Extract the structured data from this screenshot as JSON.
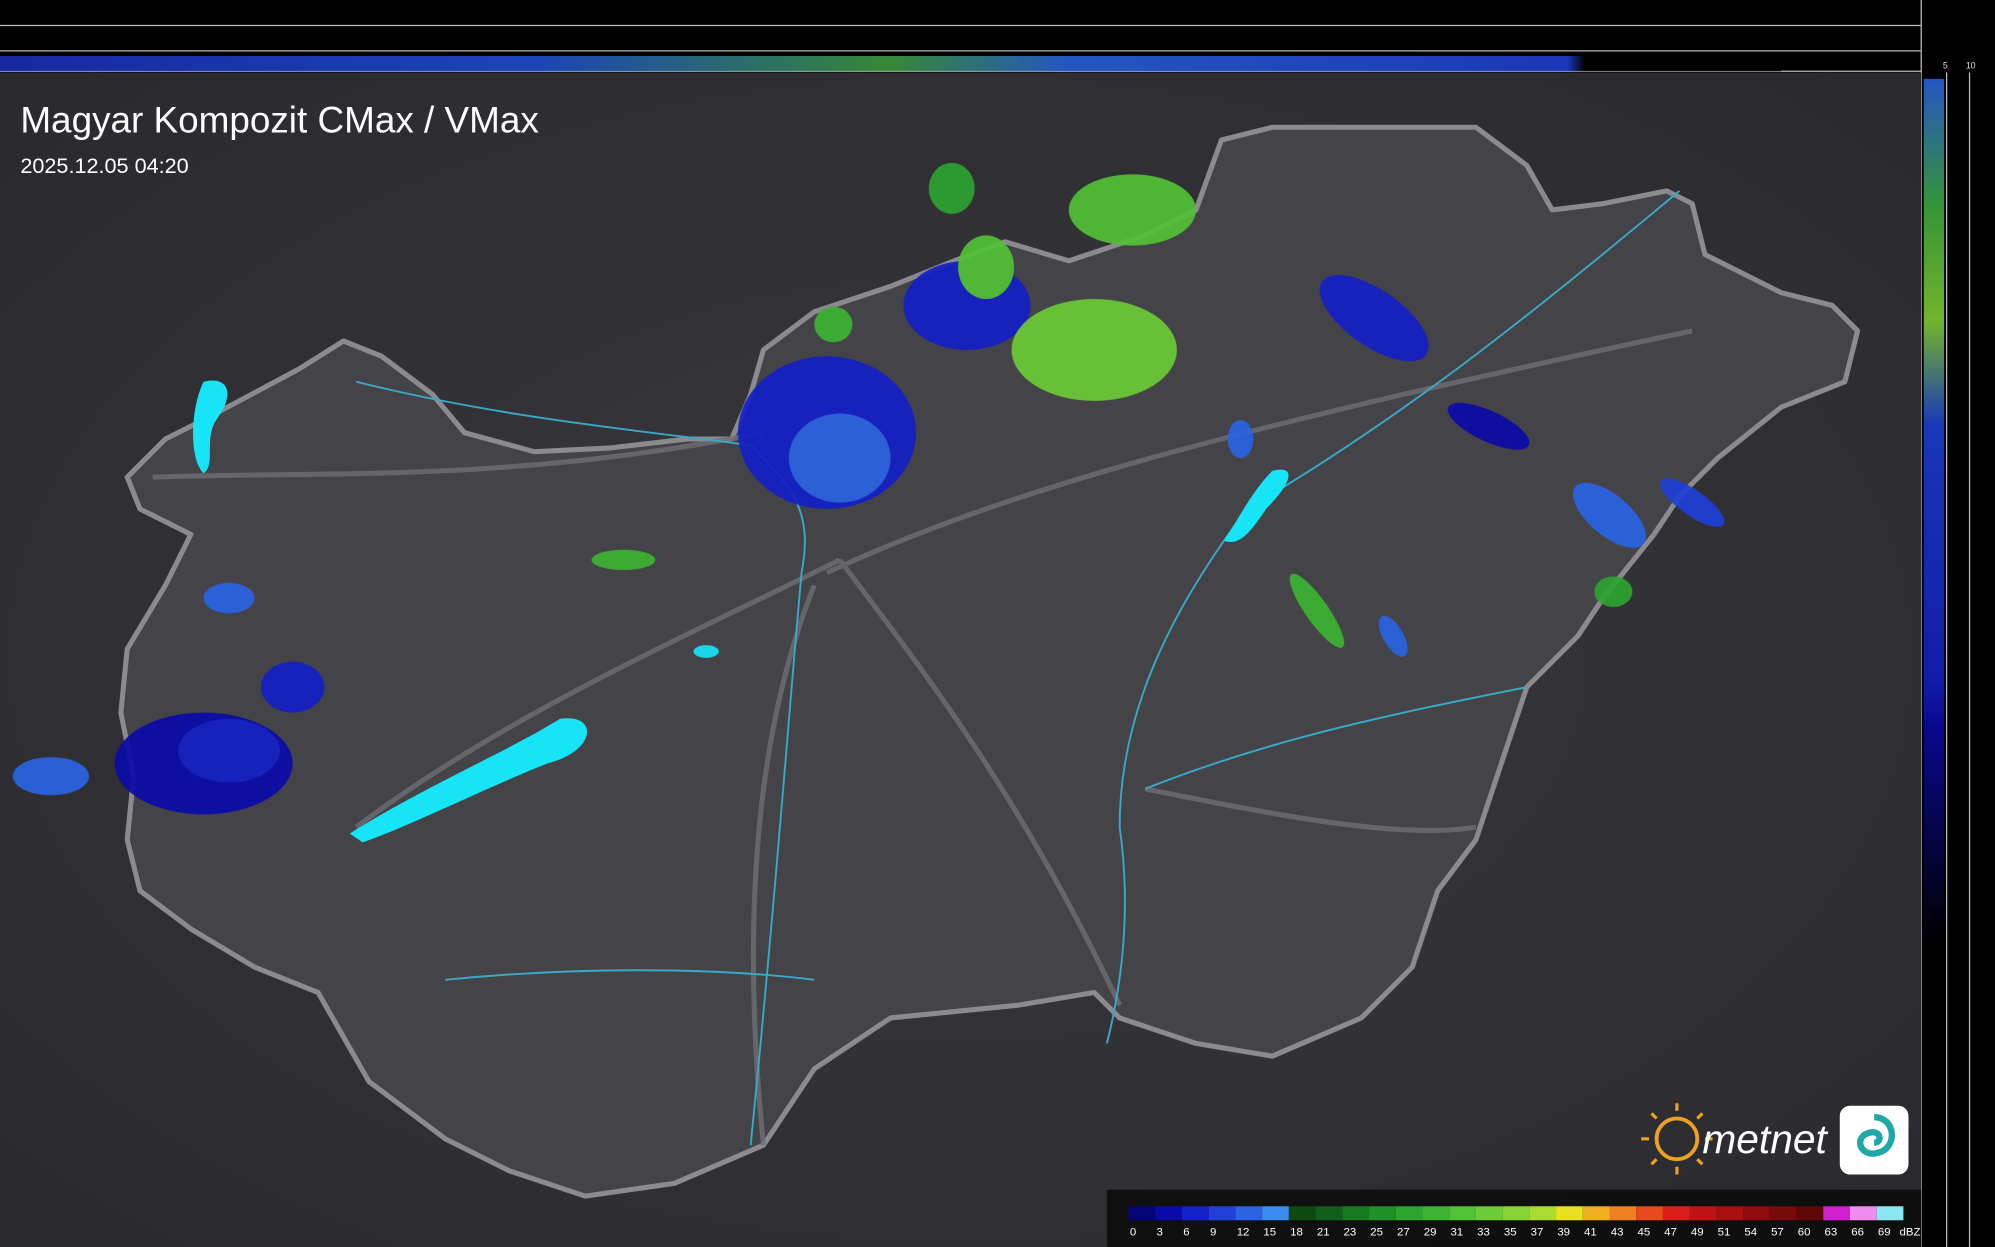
{
  "header": {
    "title": "Magyar Kompozit CMax / VMax",
    "timestamp": "2025.12.05 04:20"
  },
  "side_scale": {
    "top": [
      "10",
      "5"
    ],
    "right": [
      "5",
      "10"
    ]
  },
  "logo": {
    "text": "metnet"
  },
  "legend": {
    "unit": "dBZ",
    "steps": [
      {
        "value": 0,
        "color": "#05057a"
      },
      {
        "value": 3,
        "color": "#0a0aa8"
      },
      {
        "value": 6,
        "color": "#1420c8"
      },
      {
        "value": 9,
        "color": "#2040d8"
      },
      {
        "value": 12,
        "color": "#2a64e4"
      },
      {
        "value": 15,
        "color": "#3a8cf0"
      },
      {
        "value": 18,
        "color": "#0c4a12"
      },
      {
        "value": 21,
        "color": "#10601a"
      },
      {
        "value": 23,
        "color": "#187a20"
      },
      {
        "value": 25,
        "color": "#209028"
      },
      {
        "value": 27,
        "color": "#2ca430"
      },
      {
        "value": 29,
        "color": "#3cb432"
      },
      {
        "value": 31,
        "color": "#52c236"
      },
      {
        "value": 33,
        "color": "#6ccc36"
      },
      {
        "value": 35,
        "color": "#88d434"
      },
      {
        "value": 37,
        "color": "#a8dc30"
      },
      {
        "value": 39,
        "color": "#e8e020"
      },
      {
        "value": 41,
        "color": "#f0b020"
      },
      {
        "value": 43,
        "color": "#f08020"
      },
      {
        "value": 45,
        "color": "#e84a1c"
      },
      {
        "value": 47,
        "color": "#d82018"
      },
      {
        "value": 49,
        "color": "#c01414"
      },
      {
        "value": 51,
        "color": "#a81010"
      },
      {
        "value": 54,
        "color": "#900c0c"
      },
      {
        "value": 57,
        "color": "#780a0a"
      },
      {
        "value": 60,
        "color": "#600808"
      },
      {
        "value": 63,
        "color": "#d020d0"
      },
      {
        "value": 66,
        "color": "#f08cf0"
      },
      {
        "value": 69,
        "color": "#8ce8f0"
      }
    ]
  }
}
